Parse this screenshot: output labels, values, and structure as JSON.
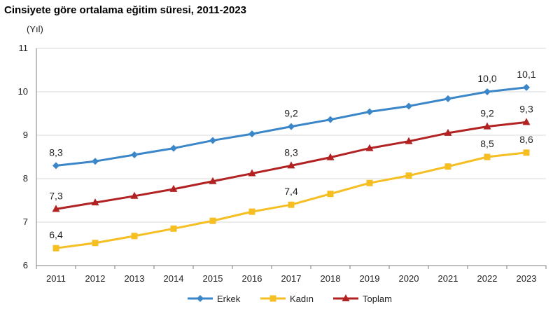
{
  "chart_data": {
    "type": "line",
    "title": "Cinsiyete göre ortalama eğitim süresi, 2011-2023",
    "ylabel": "(Yıl)",
    "xlabel": "",
    "categories": [
      "2011",
      "2012",
      "2013",
      "2014",
      "2015",
      "2016",
      "2017",
      "2018",
      "2019",
      "2020",
      "2021",
      "2022",
      "2023"
    ],
    "ylim": [
      6,
      11
    ],
    "yticks": [
      "6",
      "7",
      "8",
      "9",
      "10",
      "11"
    ],
    "grid": "horizontal",
    "legend_position": "bottom",
    "series": [
      {
        "name": "Erkek",
        "color": "#3A86C8",
        "marker": "diamond",
        "values": [
          8.3,
          8.4,
          8.55,
          8.7,
          8.88,
          9.03,
          9.2,
          9.36,
          9.54,
          9.67,
          9.84,
          10.0,
          10.1
        ],
        "labels": [
          {
            "index": 0,
            "text": "8,3"
          },
          {
            "index": 6,
            "text": "9,2"
          },
          {
            "index": 11,
            "text": "10,0"
          },
          {
            "index": 12,
            "text": "10,1"
          }
        ]
      },
      {
        "name": "Kadın",
        "color": "#F5BE22",
        "marker": "square",
        "values": [
          6.4,
          6.52,
          6.68,
          6.85,
          7.03,
          7.24,
          7.4,
          7.65,
          7.9,
          8.07,
          8.28,
          8.5,
          8.6
        ],
        "labels": [
          {
            "index": 0,
            "text": "6,4"
          },
          {
            "index": 6,
            "text": "7,4"
          },
          {
            "index": 11,
            "text": "8,5"
          },
          {
            "index": 12,
            "text": "8,6"
          }
        ]
      },
      {
        "name": "Toplam",
        "color": "#B22222",
        "marker": "triangle",
        "values": [
          7.3,
          7.45,
          7.6,
          7.76,
          7.94,
          8.12,
          8.3,
          8.49,
          8.7,
          8.86,
          9.05,
          9.2,
          9.3
        ],
        "labels": [
          {
            "index": 0,
            "text": "7,3"
          },
          {
            "index": 6,
            "text": "8,3"
          },
          {
            "index": 11,
            "text": "9,2"
          },
          {
            "index": 12,
            "text": "9,3"
          }
        ]
      }
    ]
  }
}
